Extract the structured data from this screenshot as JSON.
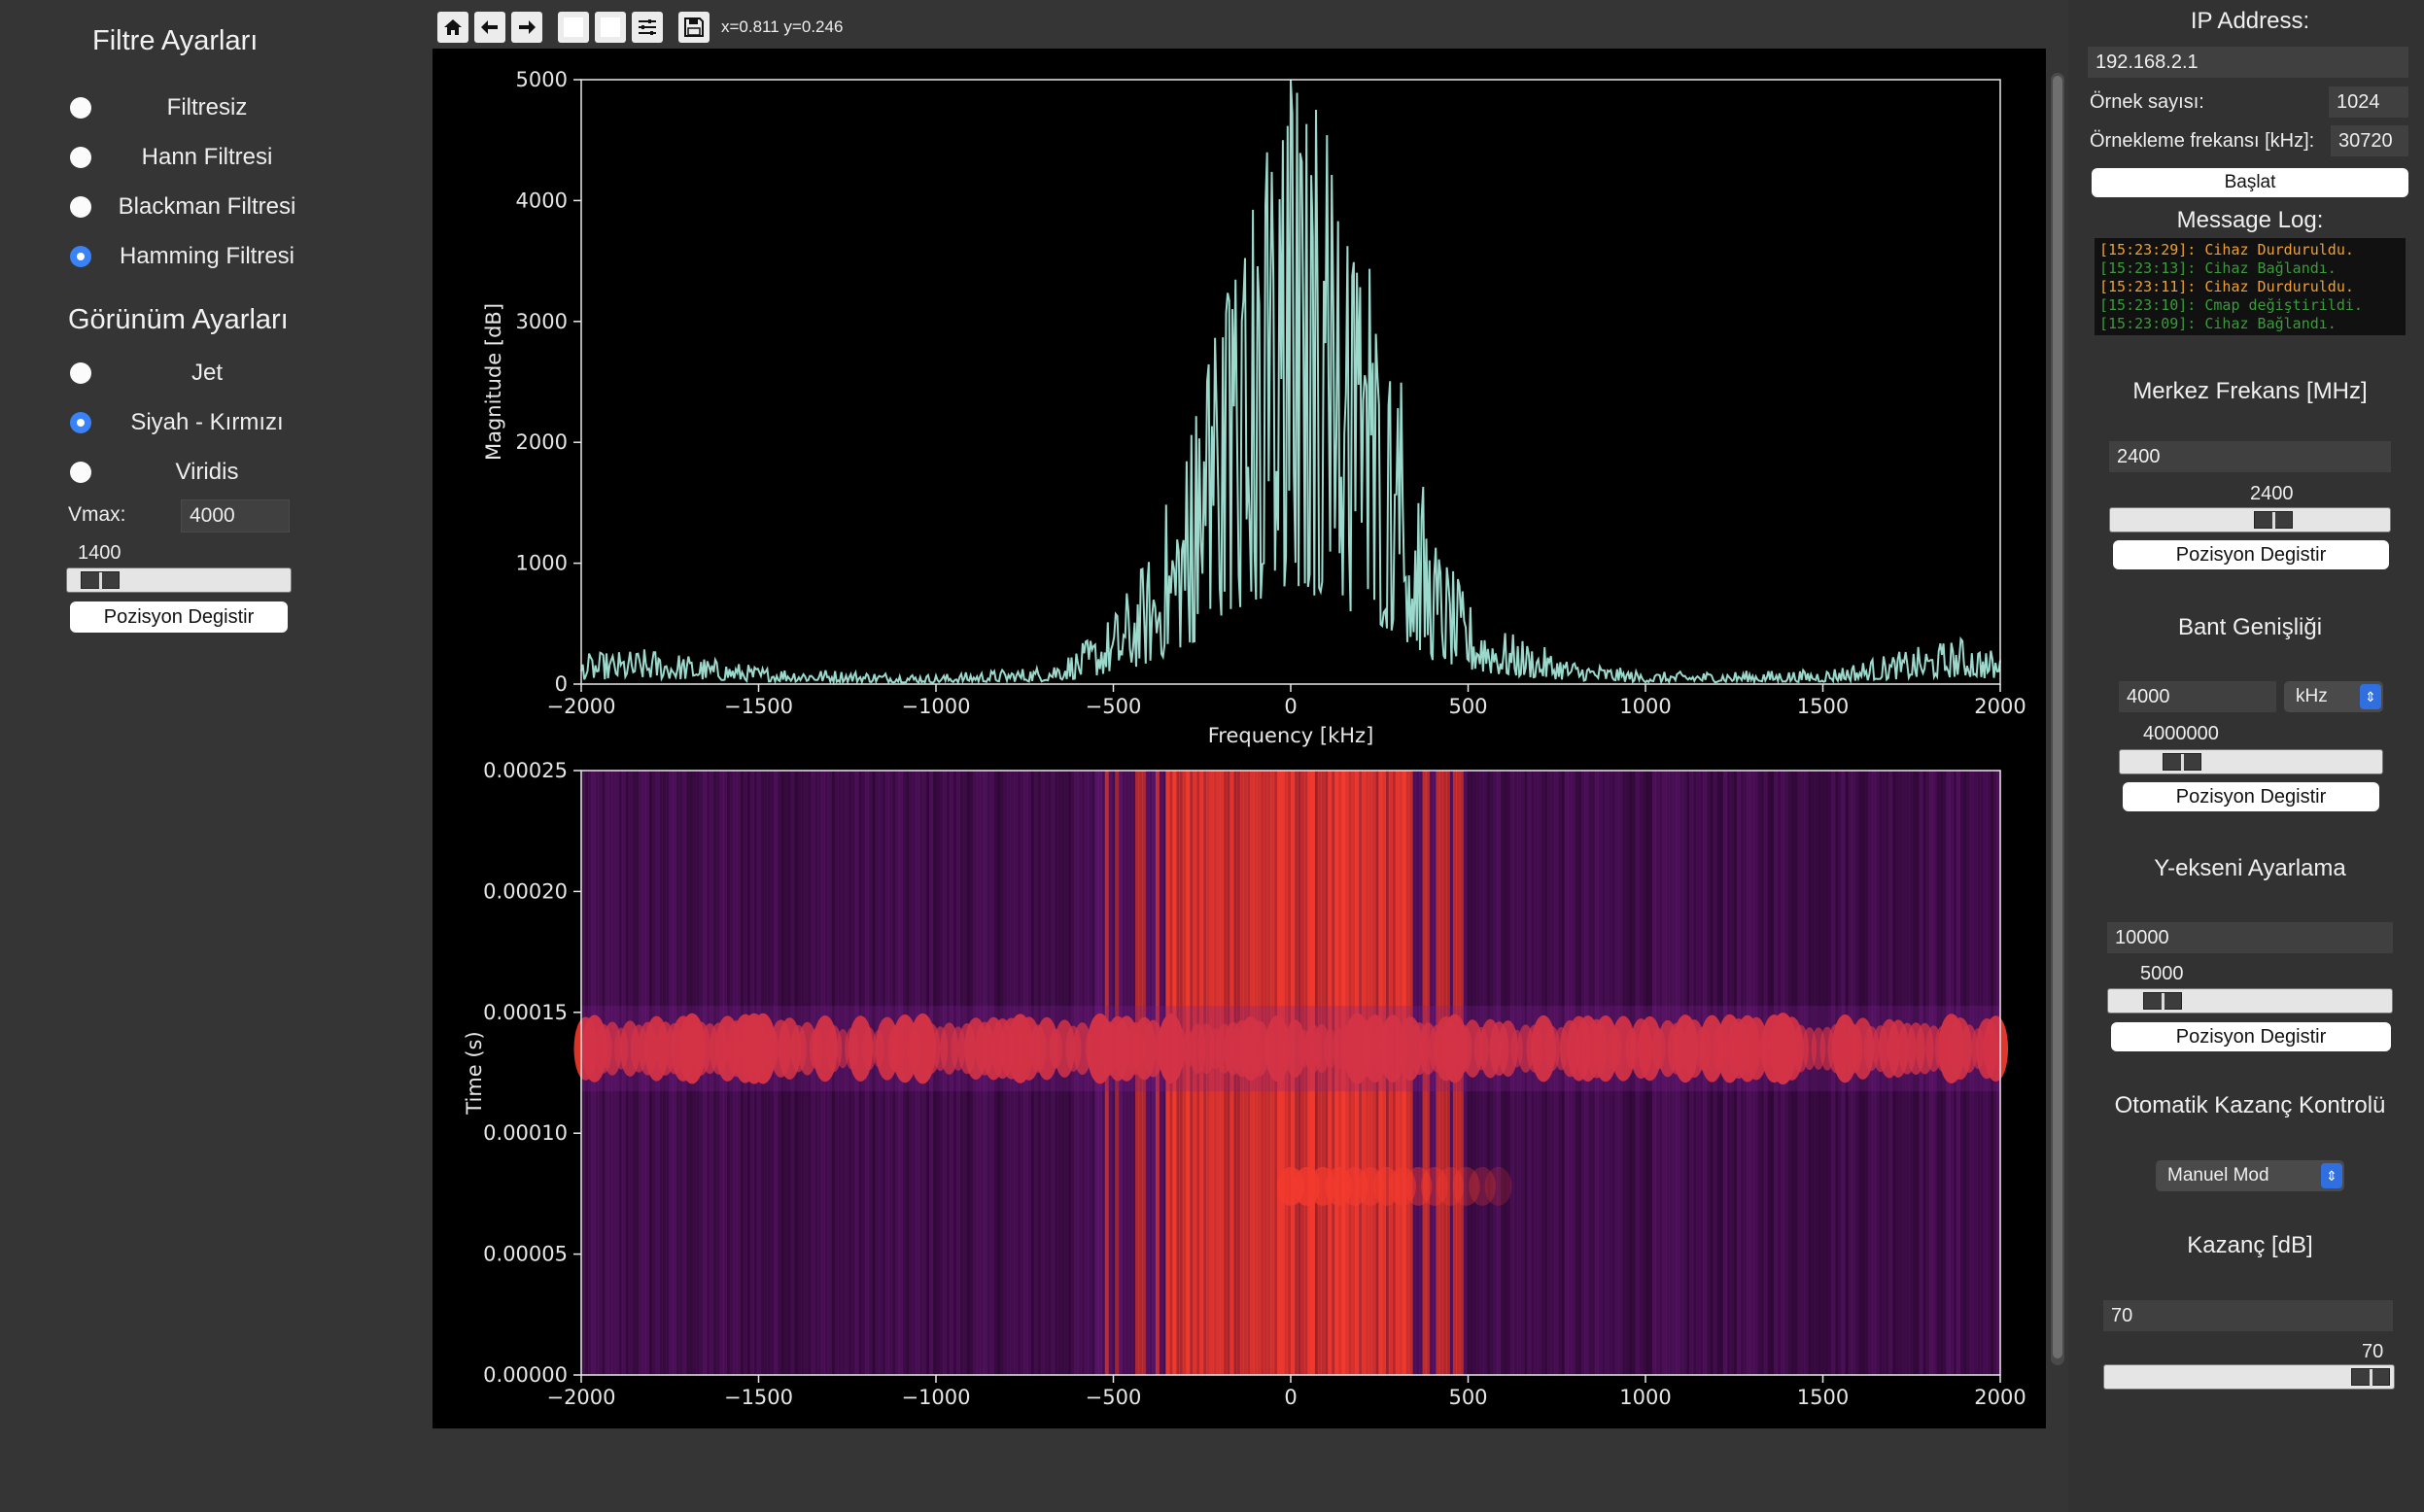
{
  "left": {
    "filter_title": "Filtre Ayarları",
    "filters": [
      {
        "label": "Filtresiz",
        "checked": false
      },
      {
        "label": "Hann Filtresi",
        "checked": false
      },
      {
        "label": "Blackman Filtresi",
        "checked": false
      },
      {
        "label": "Hamming Filtresi",
        "checked": true
      }
    ],
    "view_title": "Görünüm Ayarları",
    "colormaps": [
      {
        "label": "Jet",
        "checked": false
      },
      {
        "label": "Siyah - Kırmızı",
        "checked": true
      },
      {
        "label": "Viridis",
        "checked": false
      }
    ],
    "vmax_label": "Vmax:",
    "vmax_value": "4000",
    "slider_value": "1400",
    "button": "Pozisyon Degistir"
  },
  "toolbar": {
    "icons": [
      "home-icon",
      "back-arrow-icon",
      "forward-arrow-icon",
      "pan-icon",
      "zoom-icon",
      "configure-subplots-icon",
      "save-icon"
    ],
    "coord_readout": "x=0.811 y=0.246"
  },
  "chart_data": [
    {
      "type": "line",
      "title": "",
      "xlabel": "Frequency [kHz]",
      "ylabel": "Magnitude [dB]",
      "xlim": [
        -2000,
        2000
      ],
      "ylim": [
        0,
        5000
      ],
      "xticks": [
        "−2000",
        "−1500",
        "−1000",
        "−500",
        "0",
        "500",
        "1000",
        "1500",
        "2000"
      ],
      "yticks": [
        "0",
        "1000",
        "2000",
        "3000",
        "4000",
        "5000"
      ],
      "line_color": "#9ad9cc",
      "envelope": {
        "x": [
          -2000,
          -1800,
          -1500,
          -1000,
          -700,
          -600,
          -500,
          -400,
          -300,
          -200,
          -100,
          0,
          100,
          200,
          300,
          400,
          500,
          600,
          800,
          1000,
          1500,
          1900,
          2000
        ],
        "y": [
          250,
          300,
          150,
          80,
          150,
          300,
          600,
          1100,
          2000,
          3200,
          4200,
          5000,
          4700,
          3700,
          2700,
          1300,
          700,
          450,
          200,
          100,
          120,
          400,
          250
        ]
      }
    },
    {
      "type": "heatmap",
      "title": "",
      "xlabel": "",
      "ylabel": "Time (s)",
      "xlim": [
        -2000,
        2000
      ],
      "ylim": [
        0,
        0.00025
      ],
      "xticks": [
        "−2000",
        "−1500",
        "−1000",
        "−500",
        "0",
        "500",
        "1000",
        "1500",
        "2000"
      ],
      "yticks": [
        "0.00000",
        "0.00005",
        "0.00010",
        "0.00015",
        "0.00020",
        "0.00025"
      ],
      "colormap": "Siyah - Kırmızı",
      "colors": {
        "low": "#2a0630",
        "mid": "#7a1f8e",
        "high": "#f23a2e"
      }
    }
  ],
  "right": {
    "ip_title": "IP Address:",
    "ip_value": "192.168.2.1",
    "samples_label": "Örnek sayısı:",
    "samples_value": "1024",
    "samplerate_label": "Örnekleme frekansı [kHz]:",
    "samplerate_value": "30720",
    "start_button": "Başlat",
    "log_title": "Message Log:",
    "log": [
      {
        "text": "[15:23:29]: Cihaz Durduruldu.",
        "color": "#f0a030"
      },
      {
        "text": "[15:23:13]: Cihaz Bağlandı.",
        "color": "#3c9a3c"
      },
      {
        "text": "[15:23:11]: Cihaz Durduruldu.",
        "color": "#f0a030"
      },
      {
        "text": "[15:23:10]: Cmap değiştirildi.",
        "color": "#3c9a3c"
      },
      {
        "text": "[15:23:09]: Cihaz Bağlandı.",
        "color": "#3c9a3c"
      }
    ],
    "center_title": "Merkez Frekans [MHz]",
    "center_value": "2400",
    "center_slider_value": "2400",
    "bw_title": "Bant Genişliği",
    "bw_value": "4000",
    "bw_unit": "kHz",
    "bw_slider_value": "4000000",
    "y_title": "Y-ekseni Ayarlama",
    "y_value": "10000",
    "y_slider_value": "5000",
    "agc_title": "Otomatik Kazanç Kontrolü",
    "agc_mode": "Manuel Mod",
    "gain_title": "Kazanç [dB]",
    "gain_value": "70",
    "gain_slider_value": "70",
    "button": "Pozisyon Degistir"
  }
}
